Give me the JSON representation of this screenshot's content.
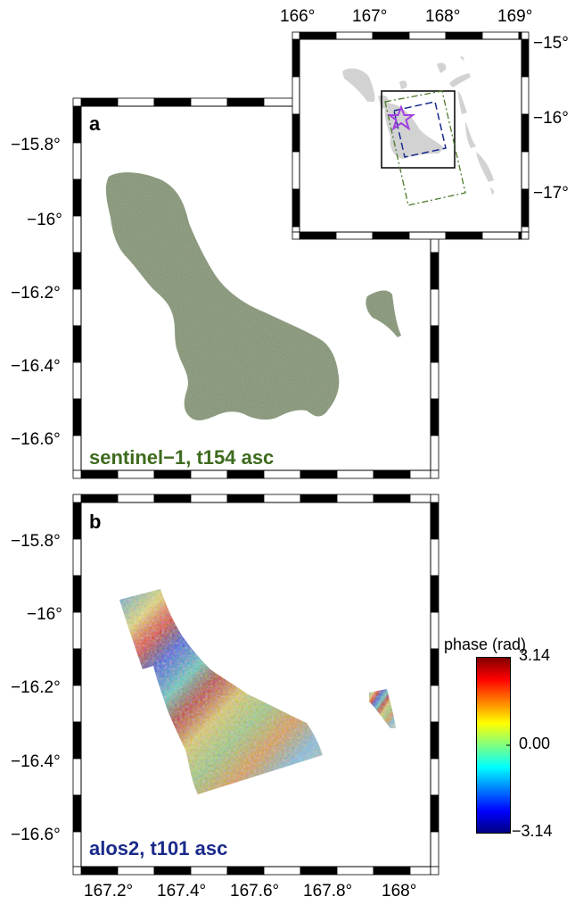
{
  "panel_a": {
    "letter": "a",
    "caption": "sentinel−1, t154 asc",
    "caption_color": "#3e6b1e",
    "lat_labels": [
      "−15.8°",
      "−16°",
      "−16.2°",
      "−16.4°",
      "−16.6°"
    ]
  },
  "panel_b": {
    "letter": "b",
    "caption": "alos2, t101 asc",
    "caption_color": "#1a2a8a",
    "lat_labels": [
      "−15.8°",
      "−16°",
      "−16.2°",
      "−16.4°",
      "−16.6°"
    ],
    "lon_labels": [
      "167.2°",
      "167.4°",
      "167.6°",
      "167.8°",
      "168°"
    ]
  },
  "inset": {
    "lon_labels": [
      "166°",
      "167°",
      "168°",
      "169°"
    ],
    "lat_labels": [
      "−15°",
      "−16°",
      "−17°"
    ],
    "star_color": "#a040e0",
    "sentinel_frame_color": "#4a7a2a",
    "alos_frame_color": "#1a2a8a"
  },
  "colorbar": {
    "title": "phase (rad)",
    "max_label": "3.14",
    "mid_label": "0.00",
    "min_label": "−3.14",
    "colors": [
      "#00007f",
      "#0000ff",
      "#007fff",
      "#00ffff",
      "#7fff7f",
      "#ffff00",
      "#ff7f00",
      "#ff0000",
      "#7f0000"
    ]
  }
}
